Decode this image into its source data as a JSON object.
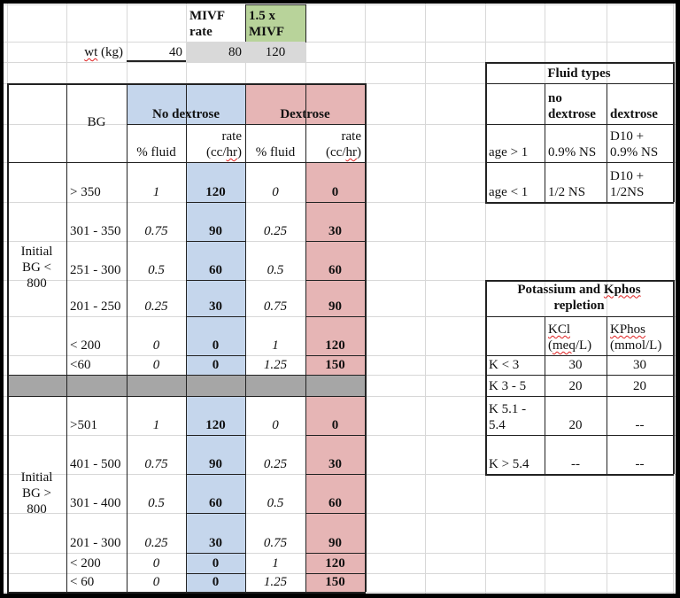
{
  "header": {
    "mivf_label": "MIVF rate",
    "mivf_15_label": "1.5 x MIVF",
    "wt_label": "wt (kg)",
    "wt_value": "40",
    "mivf_value": "80",
    "mivf_15_value": "120"
  },
  "main_table": {
    "bg_header": "BG",
    "no_dextrose": "No dextrose",
    "dextrose": "Dextrose",
    "pct_fluid": "% fluid",
    "rate_label": "rate",
    "rate_unit": "(cc/hr)",
    "group1": {
      "label": "Initial BG < 800",
      "rows": [
        {
          "bg": "> 350",
          "nd_pct": "1",
          "nd_rate": "120",
          "d_pct": "0",
          "d_rate": "0"
        },
        {
          "bg": "301 - 350",
          "nd_pct": "0.75",
          "nd_rate": "90",
          "d_pct": "0.25",
          "d_rate": "30"
        },
        {
          "bg": "251 - 300",
          "nd_pct": "0.5",
          "nd_rate": "60",
          "d_pct": "0.5",
          "d_rate": "60"
        },
        {
          "bg": "201 - 250",
          "nd_pct": "0.25",
          "nd_rate": "30",
          "d_pct": "0.75",
          "d_rate": "90"
        },
        {
          "bg": "< 200",
          "nd_pct": "0",
          "nd_rate": "0",
          "d_pct": "1",
          "d_rate": "120"
        },
        {
          "bg": "<60",
          "nd_pct": "0",
          "nd_rate": "0",
          "d_pct": "1.25",
          "d_rate": "150"
        }
      ]
    },
    "group2": {
      "label": "Initial BG > 800",
      "rows": [
        {
          "bg": ">501",
          "nd_pct": "1",
          "nd_rate": "120",
          "d_pct": "0",
          "d_rate": "0"
        },
        {
          "bg": "401 - 500",
          "nd_pct": "0.75",
          "nd_rate": "90",
          "d_pct": "0.25",
          "d_rate": "30"
        },
        {
          "bg": "301 - 400",
          "nd_pct": "0.5",
          "nd_rate": "60",
          "d_pct": "0.5",
          "d_rate": "60"
        },
        {
          "bg": "201 - 300",
          "nd_pct": "0.25",
          "nd_rate": "30",
          "d_pct": "0.75",
          "d_rate": "90"
        },
        {
          "bg": "< 200",
          "nd_pct": "0",
          "nd_rate": "0",
          "d_pct": "1",
          "d_rate": "120"
        },
        {
          "bg": "< 60",
          "nd_pct": "0",
          "nd_rate": "0",
          "d_pct": "1.25",
          "d_rate": "150"
        }
      ]
    }
  },
  "fluid_types": {
    "title": "Fluid types",
    "col_no_dextrose": "no dextrose",
    "col_dextrose": "dextrose",
    "rows": [
      {
        "label": "age > 1",
        "no_dextrose": "0.9% NS",
        "dextrose": "D10 + 0.9% NS"
      },
      {
        "label": "age < 1",
        "no_dextrose": "1/2 NS",
        "dextrose": "D10 + 1/2NS"
      }
    ]
  },
  "potassium": {
    "title": "Potassium and Kphos repletion",
    "col_kcl": "KCl (meq/L)",
    "col_kphos": "KPhos (mmol/L)",
    "rows": [
      {
        "label": "K < 3",
        "kcl": "30",
        "kphos": "30"
      },
      {
        "label": "K 3 - 5",
        "kcl": "20",
        "kphos": "20"
      },
      {
        "label": "K 5.1 - 5.4",
        "kcl": "20",
        "kphos": "--"
      },
      {
        "label": "K > 5.4",
        "kcl": "--",
        "kphos": "--"
      }
    ]
  }
}
